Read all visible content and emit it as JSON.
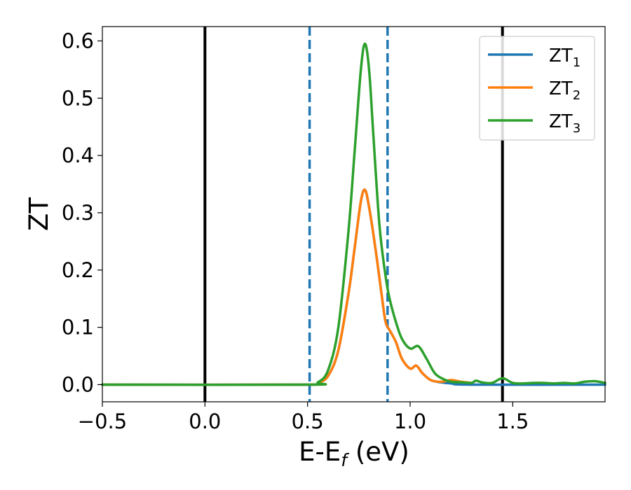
{
  "chart_data": {
    "type": "line",
    "title": "",
    "xlabel": {
      "main": "E-E",
      "sub": "f",
      "suffix": " (eV)"
    },
    "ylabel": "ZT",
    "xlim": [
      -0.5,
      1.95
    ],
    "ylim": [
      -0.03,
      0.625
    ],
    "xticks": [
      -0.5,
      0.0,
      0.5,
      1.0,
      1.5
    ],
    "xtick_labels": [
      "−0.5",
      "0.0",
      "0.5",
      "1.0",
      "1.5"
    ],
    "yticks": [
      0.0,
      0.1,
      0.2,
      0.3,
      0.4,
      0.5,
      0.6
    ],
    "ytick_labels": [
      "0.0",
      "0.1",
      "0.2",
      "0.3",
      "0.4",
      "0.5",
      "0.6"
    ],
    "grid": false,
    "legend_position": "top-right",
    "vlines": [
      {
        "x": 0.0,
        "style": "solid",
        "color": "#000000"
      },
      {
        "x": 1.45,
        "style": "solid",
        "color": "#000000"
      },
      {
        "x": 0.51,
        "style": "dashed",
        "color": "#1f77b4"
      },
      {
        "x": 0.89,
        "style": "dashed",
        "color": "#1f77b4"
      }
    ],
    "series": [
      {
        "name": {
          "main": "ZT",
          "sub": "1"
        },
        "color": "#1f77b4",
        "x": [
          -0.5,
          0.5,
          0.55,
          0.6,
          0.65,
          0.7,
          0.73,
          0.76,
          0.78,
          0.8,
          0.83,
          0.86,
          0.88,
          0.9,
          0.93,
          0.96,
          1.0,
          1.03,
          1.06,
          1.1,
          1.15,
          1.2,
          1.3,
          1.95
        ],
        "y": [
          0.0,
          0.0,
          0.003,
          0.015,
          0.06,
          0.16,
          0.24,
          0.32,
          0.34,
          0.31,
          0.24,
          0.16,
          0.11,
          0.095,
          0.075,
          0.045,
          0.028,
          0.033,
          0.02,
          0.008,
          0.004,
          0.002,
          0.0,
          0.0
        ]
      },
      {
        "name": {
          "main": "ZT",
          "sub": "2"
        },
        "color": "#ff7f0e",
        "x": [
          -0.5,
          0.5,
          0.55,
          0.6,
          0.65,
          0.7,
          0.73,
          0.76,
          0.78,
          0.8,
          0.83,
          0.86,
          0.88,
          0.9,
          0.93,
          0.96,
          1.0,
          1.03,
          1.06,
          1.1,
          1.15,
          1.2,
          1.25,
          1.3
        ],
        "y": [
          0.0,
          0.0,
          0.003,
          0.015,
          0.06,
          0.16,
          0.24,
          0.32,
          0.34,
          0.31,
          0.24,
          0.16,
          0.11,
          0.095,
          0.075,
          0.045,
          0.028,
          0.033,
          0.02,
          0.008,
          0.005,
          0.008,
          0.005,
          0.003
        ]
      },
      {
        "name": {
          "main": "ZT",
          "sub": "3"
        },
        "color": "#2ca02c",
        "x": [
          -0.5,
          0.5,
          0.55,
          0.6,
          0.65,
          0.7,
          0.73,
          0.76,
          0.78,
          0.8,
          0.82,
          0.85,
          0.88,
          0.9,
          0.93,
          0.96,
          1.0,
          1.04,
          1.08,
          1.12,
          1.16,
          1.2,
          1.25,
          1.3,
          1.32,
          1.35,
          1.4,
          1.45,
          1.5,
          1.55,
          1.6,
          1.65,
          1.7,
          1.75,
          1.8,
          1.85,
          1.9,
          1.95
        ],
        "y": [
          0.0,
          0.0,
          0.004,
          0.025,
          0.1,
          0.27,
          0.41,
          0.55,
          0.595,
          0.55,
          0.44,
          0.28,
          0.19,
          0.15,
          0.11,
          0.08,
          0.063,
          0.067,
          0.045,
          0.02,
          0.01,
          0.005,
          0.004,
          0.003,
          0.007,
          0.004,
          0.003,
          0.011,
          0.003,
          0.002,
          0.003,
          0.003,
          0.002,
          0.003,
          0.002,
          0.005,
          0.006,
          0.003
        ]
      }
    ]
  }
}
